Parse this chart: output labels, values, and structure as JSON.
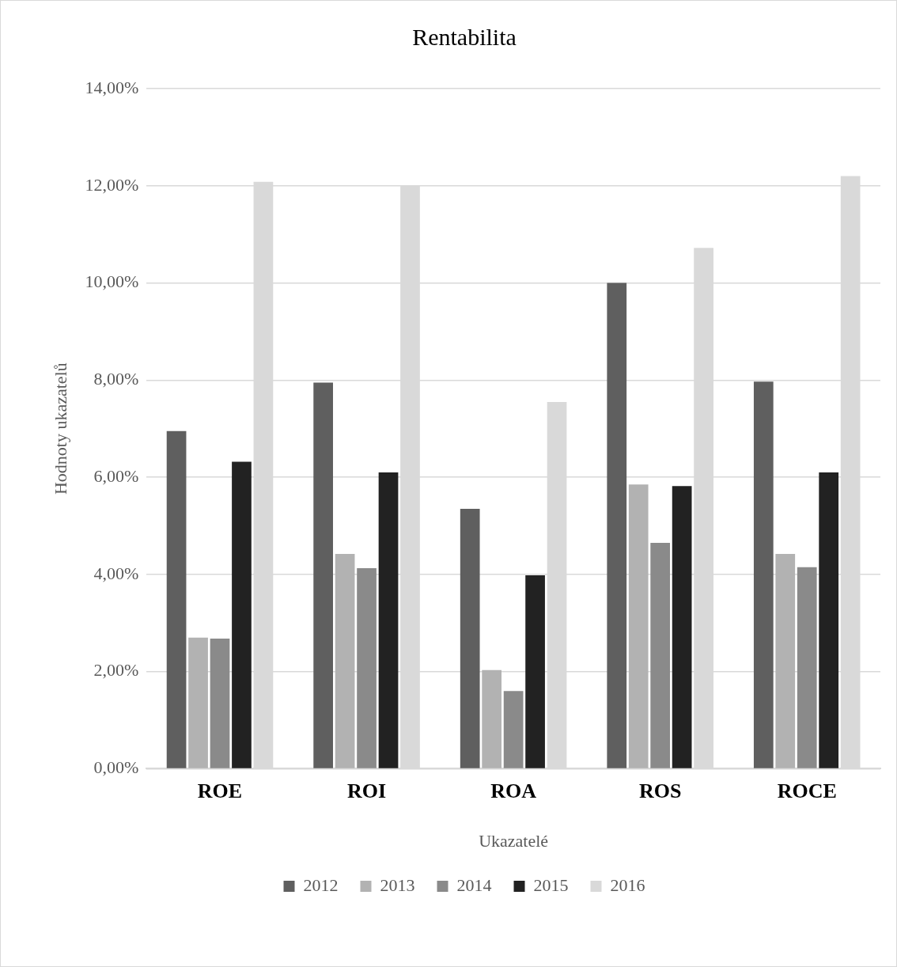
{
  "chart_data": {
    "type": "bar",
    "title": "Rentabilita",
    "xlabel": "Ukazatelé",
    "ylabel": "Hodnoty ukazatelů",
    "categories": [
      "ROE",
      "ROI",
      "ROA",
      "ROS",
      "ROCE"
    ],
    "series": [
      {
        "name": "2012",
        "color": "#5f5f5f",
        "values": [
          6.95,
          7.95,
          5.35,
          10.0,
          7.97
        ]
      },
      {
        "name": "2013",
        "color": "#b2b2b2",
        "values": [
          2.7,
          4.42,
          2.03,
          5.85,
          4.42
        ]
      },
      {
        "name": "2014",
        "color": "#8a8a8a",
        "values": [
          2.68,
          4.13,
          1.6,
          4.65,
          4.15
        ]
      },
      {
        "name": "2015",
        "color": "#222222",
        "values": [
          6.32,
          6.1,
          3.98,
          5.82,
          6.1
        ]
      },
      {
        "name": "2016",
        "color": "#d9d9d9",
        "values": [
          12.08,
          12.0,
          7.55,
          10.72,
          12.2
        ]
      }
    ],
    "ylim": [
      0,
      14
    ],
    "yticks": [
      {
        "value": 0,
        "label": "0,00%"
      },
      {
        "value": 2,
        "label": "2,00%"
      },
      {
        "value": 4,
        "label": "4,00%"
      },
      {
        "value": 6,
        "label": "6,00%"
      },
      {
        "value": 8,
        "label": "8,00%"
      },
      {
        "value": 10,
        "label": "10,00%"
      },
      {
        "value": 12,
        "label": "12,00%"
      },
      {
        "value": 14,
        "label": "14,00%"
      }
    ],
    "grid": "y",
    "legend": "bottom"
  }
}
